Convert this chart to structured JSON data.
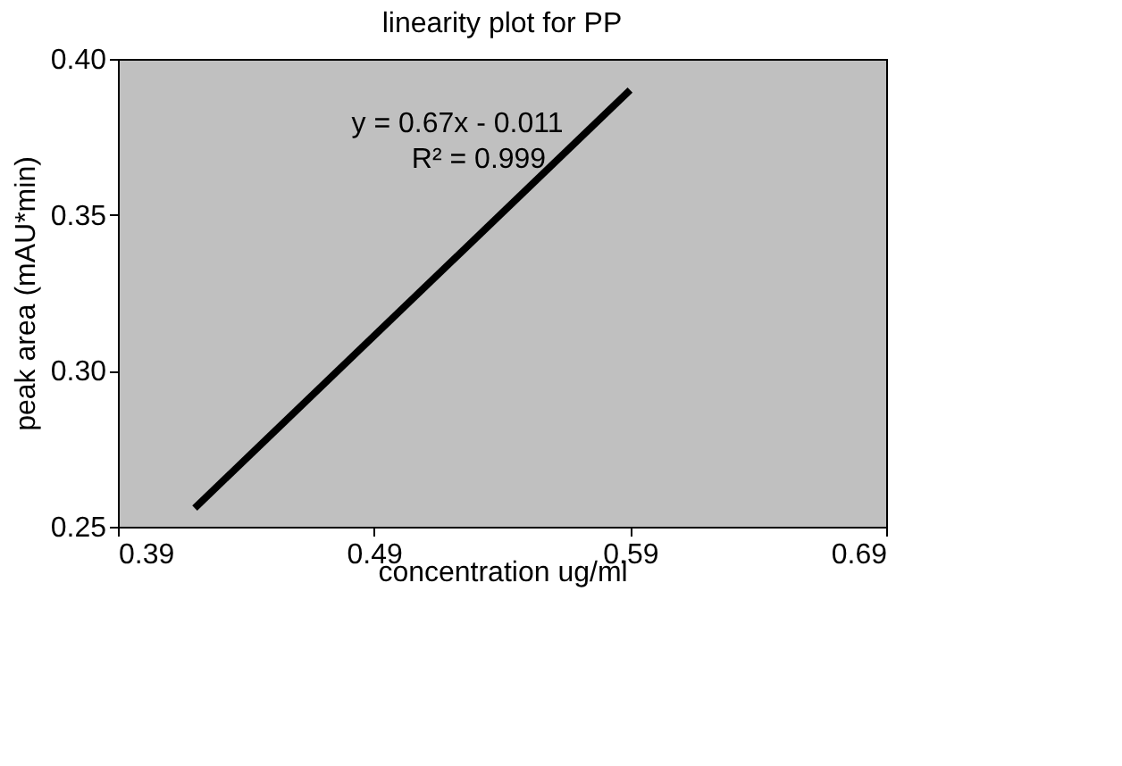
{
  "chart_data": {
    "type": "line",
    "title": "linearity plot for PP",
    "xlabel": "concentration ug/ml",
    "ylabel": "peak area (mAU*min)",
    "x": [
      0.42,
      0.59
    ],
    "series": [
      {
        "color": "#000000",
        "values": [
          0.256,
          0.39
        ]
      }
    ],
    "xlim": [
      0.39,
      0.69
    ],
    "xticks": [
      {
        "value": 0.39,
        "label": "0.39"
      },
      {
        "value": 0.49,
        "label": "0.49"
      },
      {
        "value": 0.59,
        "label": "0.59"
      },
      {
        "value": 0.69,
        "label": "0.69"
      }
    ],
    "ylim": [
      0.25,
      0.4
    ],
    "yticks": [
      {
        "value": 0.25,
        "label": "0.25"
      },
      {
        "value": 0.3,
        "label": "0.30"
      },
      {
        "value": 0.35,
        "label": "0.35"
      },
      {
        "value": 0.4,
        "label": "0.40"
      }
    ],
    "annotations": [
      "y = 0.67x - 0.011",
      "R² = 0.999"
    ],
    "grid": false,
    "marker": "none",
    "line_style": "solid"
  }
}
